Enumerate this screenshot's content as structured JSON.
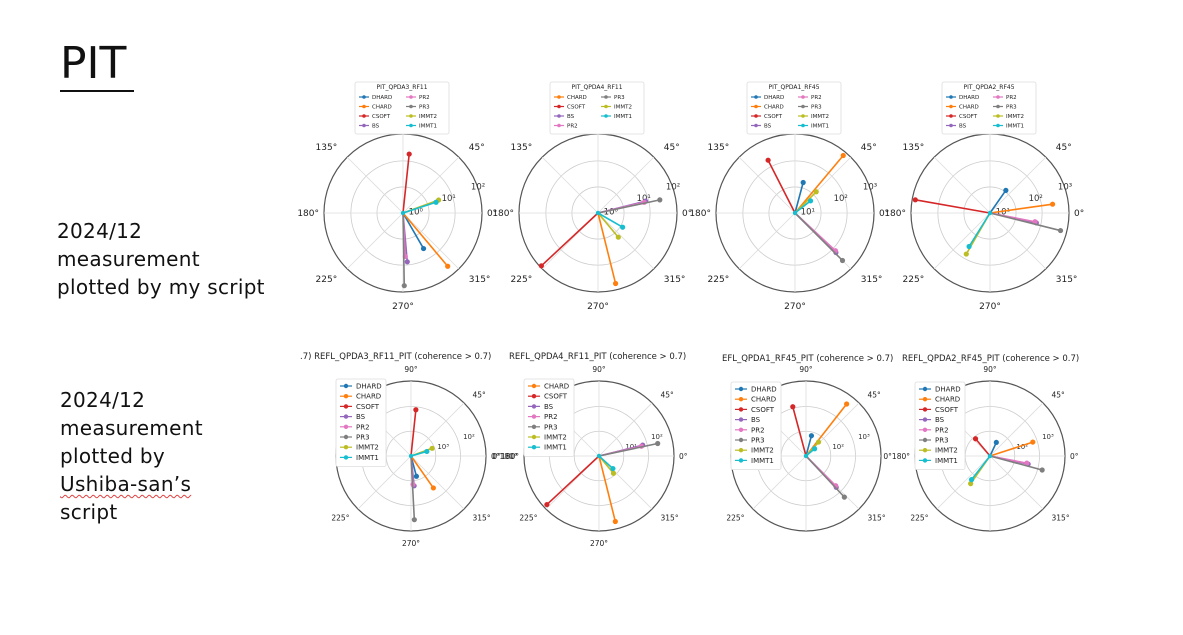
{
  "slide": {
    "title": "PIT",
    "row1_caption": [
      "2024/12",
      "measurement",
      "plotted by my script"
    ],
    "row2_caption": [
      "2024/12",
      "measurement",
      "plotted by",
      "Ushiba-san’s",
      "script"
    ]
  },
  "series_colors": {
    "DHARD": "#1f77b4",
    "CHARD": "#ff7f0e",
    "CSOFT": "#d62728",
    "BS": "#9467bd",
    "PR2": "#e377c2",
    "PR3": "#7f7f7f",
    "IMMT2": "#bcbd22",
    "IMMT1": "#17becf"
  },
  "chart_data": [
    {
      "type": "polar",
      "title": "PIT_QPDA3_RF11",
      "angle_labels": [
        "0°",
        "45°",
        "90°",
        "135°",
        "180°",
        "225°",
        "270°",
        "315°"
      ],
      "radial_tick_labels": [
        "10⁰",
        "10¹",
        "10²"
      ],
      "legend": "top",
      "legend_entries": [
        "DHARD",
        "PR2",
        "CHARD",
        "PR3",
        "CSOFT",
        "IMMT2",
        "BS",
        "IMMT1"
      ],
      "series": [
        {
          "name": "DHARD",
          "angle": 300,
          "r": 0.52
        },
        {
          "name": "CHARD",
          "angle": 310,
          "r": 0.88
        },
        {
          "name": "CSOFT",
          "angle": 84,
          "r": 0.75
        },
        {
          "name": "BS",
          "angle": 275,
          "r": 0.62
        },
        {
          "name": "PR2",
          "angle": 273,
          "r": 0.55
        },
        {
          "name": "PR3",
          "angle": 271,
          "r": 0.92
        },
        {
          "name": "IMMT2",
          "angle": 20,
          "r": 0.48
        },
        {
          "name": "IMMT1",
          "angle": 18,
          "r": 0.44
        }
      ]
    },
    {
      "type": "polar",
      "title": "PIT_QPDA4_RF11",
      "angle_labels": [
        "0°",
        "45°",
        "90°",
        "135°",
        "180°",
        "225°",
        "270°",
        "315°"
      ],
      "radial_tick_labels": [
        "10⁰",
        "10¹",
        "10²"
      ],
      "legend": "top",
      "legend_entries": [
        "CHARD",
        "PR3",
        "CSOFT",
        "IMMT2",
        "BS",
        "IMMT1",
        "PR2"
      ],
      "series": [
        {
          "name": "CHARD",
          "angle": 284,
          "r": 0.92
        },
        {
          "name": "CSOFT",
          "angle": 223,
          "r": 0.98
        },
        {
          "name": "BS",
          "angle": 14,
          "r": 0.62
        },
        {
          "name": "PR2",
          "angle": 13,
          "r": 0.6
        },
        {
          "name": "PR3",
          "angle": 12,
          "r": 0.8
        },
        {
          "name": "IMMT2",
          "angle": 310,
          "r": 0.4
        },
        {
          "name": "IMMT1",
          "angle": 330,
          "r": 0.36
        }
      ]
    },
    {
      "type": "polar",
      "title": "PIT_QPDA1_RF45",
      "angle_labels": [
        "0°",
        "45°",
        "90°",
        "135°",
        "180°",
        "225°",
        "270°",
        "315°"
      ],
      "radial_tick_labels": [
        "10¹",
        "10²",
        "10³"
      ],
      "legend": "top",
      "legend_entries": [
        "DHARD",
        "PR2",
        "CHARD",
        "PR3",
        "CSOFT",
        "IMMT2",
        "BS",
        "IMMT1"
      ],
      "series": [
        {
          "name": "DHARD",
          "angle": 75,
          "r": 0.4
        },
        {
          "name": "CHARD",
          "angle": 50,
          "r": 0.95
        },
        {
          "name": "CSOFT",
          "angle": 117,
          "r": 0.75
        },
        {
          "name": "BS",
          "angle": 316,
          "r": 0.72
        },
        {
          "name": "PR2",
          "angle": 317,
          "r": 0.7
        },
        {
          "name": "PR3",
          "angle": 315,
          "r": 0.85
        },
        {
          "name": "IMMT2",
          "angle": 45,
          "r": 0.38
        },
        {
          "name": "IMMT1",
          "angle": 38,
          "r": 0.25
        }
      ]
    },
    {
      "type": "polar",
      "title": "PIT_QPDA2_RF45",
      "angle_labels": [
        "0°",
        "45°",
        "90°",
        "135°",
        "180°",
        "225°",
        "270°",
        "315°"
      ],
      "radial_tick_labels": [
        "10¹",
        "10²",
        "10³"
      ],
      "legend": "top",
      "legend_entries": [
        "DHARD",
        "PR2",
        "CHARD",
        "PR3",
        "CSOFT",
        "IMMT2",
        "BS",
        "IMMT1"
      ],
      "series": [
        {
          "name": "DHARD",
          "angle": 55,
          "r": 0.35
        },
        {
          "name": "CHARD",
          "angle": 8,
          "r": 0.8
        },
        {
          "name": "CSOFT",
          "angle": 170,
          "r": 0.96
        },
        {
          "name": "BS",
          "angle": 348,
          "r": 0.6
        },
        {
          "name": "PR2",
          "angle": 349,
          "r": 0.58
        },
        {
          "name": "PR3",
          "angle": 346,
          "r": 0.92
        },
        {
          "name": "IMMT2",
          "angle": 240,
          "r": 0.6
        },
        {
          "name": "IMMT1",
          "angle": 238,
          "r": 0.5
        }
      ]
    },
    {
      "type": "polar",
      "title": ".7)   REFL_QPDA3_RF11_PIT (coherence > 0.7)",
      "angle_labels": [
        "0°180°",
        "45°",
        "90°",
        "",
        "",
        "225°",
        "270°",
        "315°"
      ],
      "radial_tick_labels": [
        "10³",
        "10²"
      ],
      "legend": "left",
      "legend_entries": [
        "DHARD",
        "CHARD",
        "CSOFT",
        "BS",
        "PR2",
        "PR3",
        "IMMT2",
        "IMMT1"
      ],
      "series": [
        {
          "name": "DHARD",
          "angle": 285,
          "r": 0.28
        },
        {
          "name": "CHARD",
          "angle": 305,
          "r": 0.52
        },
        {
          "name": "CSOFT",
          "angle": 84,
          "r": 0.62
        },
        {
          "name": "BS",
          "angle": 276,
          "r": 0.4
        },
        {
          "name": "PR2",
          "angle": 274,
          "r": 0.38
        },
        {
          "name": "PR3",
          "angle": 273,
          "r": 0.85
        },
        {
          "name": "IMMT2",
          "angle": 20,
          "r": 0.3
        },
        {
          "name": "IMMT1",
          "angle": 16,
          "r": 0.22
        }
      ]
    },
    {
      "type": "polar",
      "title": "REFL_QPDA4_RF11_PIT (coherence > 0.7)",
      "angle_labels": [
        "0°",
        "45°",
        "90°",
        "",
        "0°180°",
        "225°",
        "270°",
        "315°"
      ],
      "radial_tick_labels": [
        "10¹",
        "10²"
      ],
      "legend": "left",
      "legend_entries": [
        "CHARD",
        "CSOFT",
        "BS",
        "PR2",
        "PR3",
        "IMMT2",
        "IMMT1"
      ],
      "series": [
        {
          "name": "CHARD",
          "angle": 284,
          "r": 0.9
        },
        {
          "name": "CSOFT",
          "angle": 223,
          "r": 0.95
        },
        {
          "name": "BS",
          "angle": 14,
          "r": 0.6
        },
        {
          "name": "PR2",
          "angle": 13,
          "r": 0.58
        },
        {
          "name": "PR3",
          "angle": 12,
          "r": 0.8
        },
        {
          "name": "IMMT2",
          "angle": 310,
          "r": 0.3
        },
        {
          "name": "IMMT1",
          "angle": 318,
          "r": 0.25
        }
      ]
    },
    {
      "type": "polar",
      "title": "EFL_QPDA1_RF45_PIT (coherence > 0.7)",
      "angle_labels": [
        "",
        "45°",
        "90°",
        "",
        "",
        "225°",
        "",
        "315°"
      ],
      "radial_tick_labels": [
        "10²",
        "10³"
      ],
      "legend": "left",
      "legend_entries": [
        "DHARD",
        "CHARD",
        "CSOFT",
        "BS",
        "PR2",
        "PR3",
        "IMMT2",
        "IMMT1"
      ],
      "series": [
        {
          "name": "DHARD",
          "angle": 75,
          "r": 0.28
        },
        {
          "name": "CHARD",
          "angle": 52,
          "r": 0.88
        },
        {
          "name": "CSOFT",
          "angle": 105,
          "r": 0.68
        },
        {
          "name": "BS",
          "angle": 314,
          "r": 0.58
        },
        {
          "name": "PR2",
          "angle": 315,
          "r": 0.56
        },
        {
          "name": "PR3",
          "angle": 313,
          "r": 0.75
        },
        {
          "name": "IMMT2",
          "angle": 48,
          "r": 0.25
        },
        {
          "name": "IMMT1",
          "angle": 40,
          "r": 0.15
        }
      ]
    },
    {
      "type": "polar",
      "title": "REFL_QPDA2_RF45_PIT (coherence > 0.7)",
      "angle_labels": [
        "0°",
        "45°",
        "90°",
        "",
        "0°180°",
        "225°",
        "",
        "315°"
      ],
      "radial_tick_labels": [
        "10²",
        "10³"
      ],
      "legend": "left",
      "legend_entries": [
        "DHARD",
        "CHARD",
        "CSOFT",
        "BS",
        "PR2",
        "PR3",
        "IMMT2",
        "IMMT1"
      ],
      "series": [
        {
          "name": "DHARD",
          "angle": 65,
          "r": 0.2
        },
        {
          "name": "CHARD",
          "angle": 18,
          "r": 0.6
        },
        {
          "name": "CSOFT",
          "angle": 130,
          "r": 0.3
        },
        {
          "name": "BS",
          "angle": 348,
          "r": 0.52
        },
        {
          "name": "PR2",
          "angle": 349,
          "r": 0.5
        },
        {
          "name": "PR3",
          "angle": 345,
          "r": 0.72
        },
        {
          "name": "IMMT2",
          "angle": 235,
          "r": 0.45
        },
        {
          "name": "IMMT1",
          "angle": 232,
          "r": 0.4
        }
      ]
    }
  ]
}
